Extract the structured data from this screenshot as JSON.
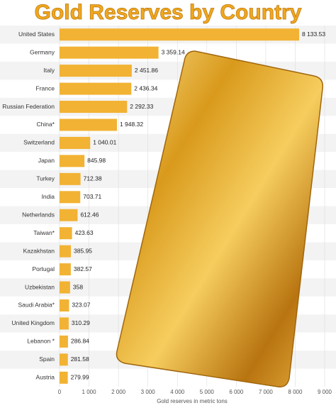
{
  "chart_data": {
    "type": "hbar",
    "title": "Gold Reserves by Country",
    "x_label": "Gold reserves in metric tons",
    "categories": [
      "United States",
      "Germany",
      "Italy",
      "France",
      "Russian Federation",
      "China*",
      "Switzerland",
      "Japan",
      "Turkey",
      "India",
      "Netherlands",
      "Taiwan*",
      "Kazakhstan",
      "Portugal",
      "Uzbekistan",
      "Saudi Arabia*",
      "United Kingdom",
      "Lebanon *",
      "Spain",
      "Austria"
    ],
    "values": [
      8133.53,
      3359.14,
      2451.86,
      2436.34,
      2292.33,
      1948.32,
      1040.01,
      845.98,
      712.38,
      703.71,
      612.46,
      423.63,
      385.95,
      382.57,
      358,
      323.07,
      310.29,
      286.84,
      281.58,
      279.99
    ],
    "value_labels": [
      "8 133.53",
      "3 359.14",
      "2 451.86",
      "2 436.34",
      "2 292.33",
      "1 948.32",
      "1 040.01",
      "845.98",
      "712.38",
      "703.71",
      "612.46",
      "423.63",
      "385.95",
      "382.57",
      "358",
      "323.07",
      "310.29",
      "286.84",
      "281.58",
      "279.99"
    ],
    "color": "#f2b233",
    "xlim": [
      0,
      9000
    ],
    "xticks": [
      0,
      {
        "value": 1000,
        "label": "1 000"
      },
      {
        "value": 2000,
        "label": "2 000"
      },
      {
        "value": 3000,
        "label": "3 000"
      },
      {
        "value": 4000,
        "label": "4 000"
      },
      {
        "value": 5000,
        "label": "5 000"
      },
      {
        "value": 6000,
        "label": "6 000"
      },
      {
        "value": 7000,
        "label": "7 000"
      },
      {
        "value": 8000,
        "label": "8 000"
      },
      {
        "value": 9000,
        "label": "9 000"
      }
    ],
    "grid": true
  }
}
